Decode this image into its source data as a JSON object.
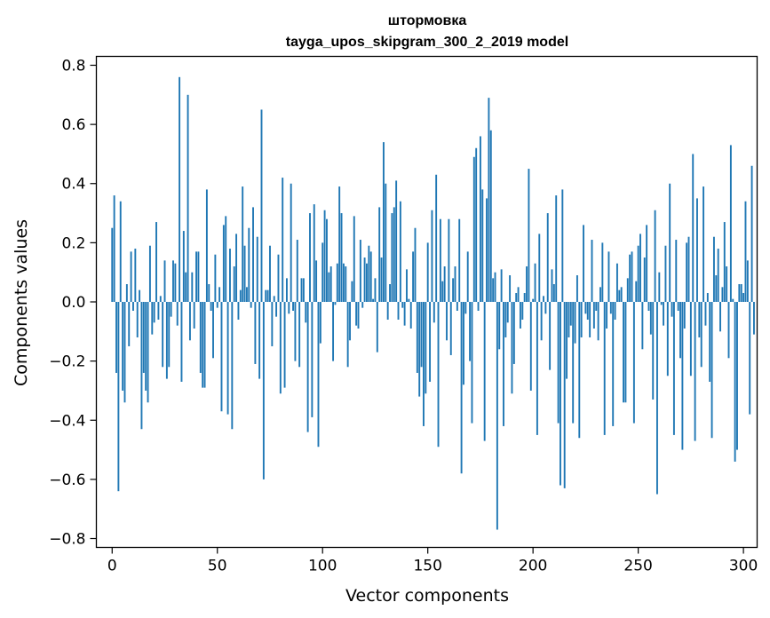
{
  "chart_data": {
    "type": "bar",
    "title": "штормовка",
    "subtitle": "tayga_upos_skipgram_300_2_2019 model",
    "xlabel": "Vector components",
    "ylabel": "Components values",
    "xlim": [
      -7.5,
      306.5
    ],
    "ylim": [
      -0.83,
      0.83
    ],
    "xticks": [
      0,
      50,
      100,
      150,
      200,
      250,
      300
    ],
    "yticks": [
      -0.8,
      -0.6,
      -0.4,
      -0.2,
      0.0,
      0.2,
      0.4,
      0.6,
      0.8
    ],
    "ytick_labels": [
      "−0.8",
      "−0.6",
      "−0.4",
      "−0.2",
      "0.0",
      "0.2",
      "0.4",
      "0.6",
      "0.8"
    ],
    "grid": false,
    "legend": "none",
    "color": "#1f77b4",
    "values": [
      0.25,
      0.36,
      -0.24,
      -0.64,
      0.34,
      -0.3,
      -0.34,
      0.06,
      -0.15,
      0.17,
      -0.03,
      0.18,
      -0.12,
      0.04,
      -0.43,
      -0.24,
      -0.3,
      -0.34,
      0.19,
      -0.11,
      -0.07,
      0.27,
      -0.06,
      0.02,
      -0.22,
      0.14,
      -0.26,
      -0.22,
      -0.05,
      0.14,
      0.13,
      -0.08,
      0.76,
      -0.27,
      0.24,
      0.1,
      0.7,
      -0.13,
      0.1,
      -0.09,
      0.17,
      0.17,
      -0.24,
      -0.29,
      -0.29,
      0.38,
      0.06,
      -0.03,
      -0.19,
      0.16,
      -0.02,
      0.05,
      -0.37,
      0.26,
      0.29,
      -0.38,
      0.18,
      -0.43,
      0.12,
      0.23,
      -0.06,
      0.04,
      0.39,
      0.19,
      0.05,
      0.25,
      -0.02,
      0.32,
      -0.21,
      0.22,
      -0.26,
      0.65,
      -0.6,
      0.04,
      0.04,
      0.19,
      -0.15,
      0.02,
      -0.05,
      0.16,
      -0.31,
      0.42,
      -0.29,
      0.08,
      -0.04,
      0.4,
      -0.03,
      -0.2,
      0.21,
      -0.22,
      0.08,
      0.08,
      -0.07,
      -0.44,
      0.3,
      -0.39,
      0.33,
      0.14,
      -0.49,
      -0.14,
      0.2,
      0.31,
      0.28,
      0.1,
      0.12,
      -0.2,
      -0.01,
      0.13,
      0.39,
      0.3,
      0.13,
      0.12,
      -0.22,
      -0.13,
      0.07,
      0.29,
      -0.08,
      -0.09,
      0.21,
      -0.02,
      0.15,
      0.13,
      0.19,
      0.17,
      0.01,
      0.08,
      -0.17,
      0.32,
      0.15,
      0.54,
      0.4,
      -0.06,
      0.06,
      0.3,
      0.32,
      0.41,
      -0.06,
      0.34,
      -0.02,
      -0.08,
      0.11,
      0.01,
      -0.09,
      0.17,
      0.25,
      -0.24,
      -0.32,
      -0.22,
      -0.42,
      -0.31,
      0.2,
      -0.27,
      0.31,
      -0.07,
      0.43,
      -0.49,
      0.28,
      0.07,
      0.12,
      -0.13,
      0.28,
      -0.18,
      0.08,
      0.12,
      -0.03,
      0.28,
      -0.58,
      -0.28,
      -0.04,
      0.17,
      -0.2,
      -0.41,
      0.49,
      0.52,
      -0.03,
      0.56,
      0.38,
      -0.47,
      0.35,
      0.69,
      0.58,
      0.08,
      0.1,
      -0.77,
      -0.16,
      0.11,
      -0.42,
      -0.12,
      -0.07,
      0.09,
      -0.31,
      -0.21,
      0.03,
      0.05,
      -0.09,
      -0.06,
      0.03,
      0.12,
      0.45,
      -0.3,
      0.01,
      0.13,
      -0.45,
      0.23,
      -0.13,
      0.02,
      -0.04,
      0.3,
      -0.23,
      0.11,
      0.06,
      0.36,
      -0.41,
      -0.62,
      0.38,
      -0.63,
      -0.26,
      -0.12,
      -0.08,
      -0.41,
      -0.14,
      0.09,
      -0.46,
      -0.12,
      0.26,
      -0.04,
      -0.06,
      -0.12,
      0.21,
      -0.09,
      -0.03,
      -0.13,
      0.05,
      0.2,
      -0.45,
      -0.09,
      0.17,
      -0.04,
      -0.42,
      -0.06,
      0.13,
      0.04,
      0.05,
      -0.34,
      -0.34,
      0.08,
      0.16,
      0.17,
      -0.41,
      0.07,
      0.19,
      0.23,
      -0.16,
      0.15,
      0.26,
      -0.03,
      -0.11,
      -0.33,
      0.31,
      -0.65,
      0.1,
      -0.01,
      -0.08,
      0.19,
      -0.25,
      0.4,
      -0.05,
      -0.45,
      0.21,
      -0.03,
      -0.19,
      -0.5,
      -0.09,
      0.2,
      0.22,
      -0.25,
      0.5,
      -0.47,
      0.35,
      -0.12,
      -0.22,
      0.39,
      -0.08,
      0.03,
      -0.27,
      -0.46,
      0.22,
      0.09,
      0.18,
      -0.1,
      0.05,
      0.27,
      0.12,
      -0.19,
      0.53,
      0.01,
      -0.54,
      -0.5,
      0.06,
      0.06,
      0.03,
      0.34,
      0.14,
      -0.38,
      0.46,
      -0.11
    ]
  }
}
